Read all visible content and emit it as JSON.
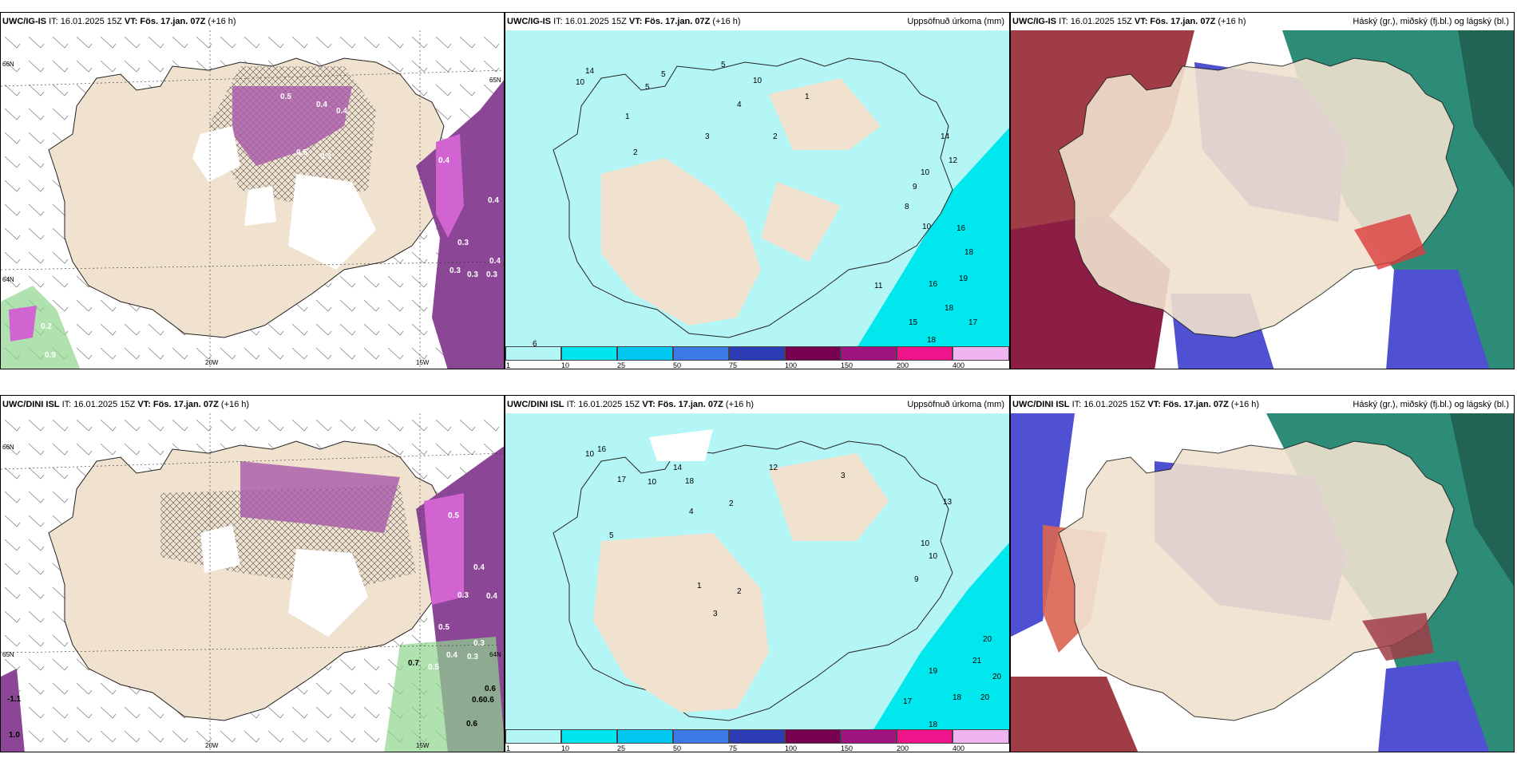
{
  "rows": [
    {
      "model": "UWC/IG-IS",
      "run": "IT: 16.01.2025 15Z",
      "vt": "VT: Fös. 17.jan. 07Z",
      "lead": "(+16 h)",
      "precip_title": "Uppsöfnuð úrkoma (mm)",
      "cloud_title": "Háský (gr.), miðský (fj.bl.) og lágský (bl.)",
      "lon_labels": [
        "20W",
        "15W"
      ],
      "lat_labels": [
        "66N",
        "64N",
        "65N"
      ],
      "wind_values": [
        "0.5",
        "0.4",
        "0.4",
        "0.5",
        "0.3",
        "0.4",
        "0.3",
        "0.3",
        "0.4",
        "0.3",
        "0.3",
        "0.4",
        "0.2",
        "0.9"
      ],
      "precip_values": [
        "14",
        "10",
        "5",
        "5",
        "5",
        "10",
        "4",
        "1",
        "2",
        "3",
        "2",
        "1",
        "12",
        "9",
        "10",
        "14",
        "16",
        "18",
        "19",
        "16",
        "18",
        "15",
        "17",
        "18",
        "11",
        "8",
        "10",
        "6"
      ]
    },
    {
      "model": "UWC/DINI ISL",
      "run": "IT: 16.01.2025 15Z",
      "vt": "VT: Fös. 17.jan. 07Z",
      "lead": "(+16 h)",
      "precip_title": "Uppsöfnuð úrkoma (mm)",
      "cloud_title": "Háský (gr.), miðský (fj.bl.) og lágský (bl.)",
      "lon_labels": [
        "20W",
        "15W"
      ],
      "lat_labels": [
        "66N",
        "65N",
        "64N"
      ],
      "wind_values": [
        "0.5",
        "0.4",
        "0.3",
        "0.4",
        "0.3",
        "0.5",
        "0.4",
        "0.3",
        "0.7",
        "0.5",
        "-1.1",
        "1.0",
        "0.6",
        "0.60.6",
        "0.6"
      ],
      "precip_values": [
        "10",
        "16",
        "17",
        "14",
        "18",
        "12",
        "10",
        "4",
        "2",
        "3",
        "5",
        "13",
        "10",
        "10",
        "9",
        "20",
        "21",
        "20",
        "19",
        "18",
        "20",
        "17",
        "18",
        "1",
        "3",
        "2"
      ]
    }
  ],
  "colorbar": {
    "ticks": [
      "1",
      "10",
      "25",
      "50",
      "75",
      "100",
      "150",
      "200",
      "400"
    ],
    "colors": [
      "#b4f5f5",
      "#00e6ee",
      "#00c8f0",
      "#3c78e6",
      "#2c3cb4",
      "#780050",
      "#a01482",
      "#f0148c",
      "#f0b4f0"
    ]
  },
  "colors": {
    "land": "#f0e2cf",
    "sea_light": "#b4f5f5",
    "sea_dark": "#00e8ee",
    "purple": "#8c4696",
    "magenta": "#d264d2",
    "cloud_low": "#5050d2",
    "cloud_mid": "#a03c46",
    "cloud_high": "#2d8c78"
  }
}
